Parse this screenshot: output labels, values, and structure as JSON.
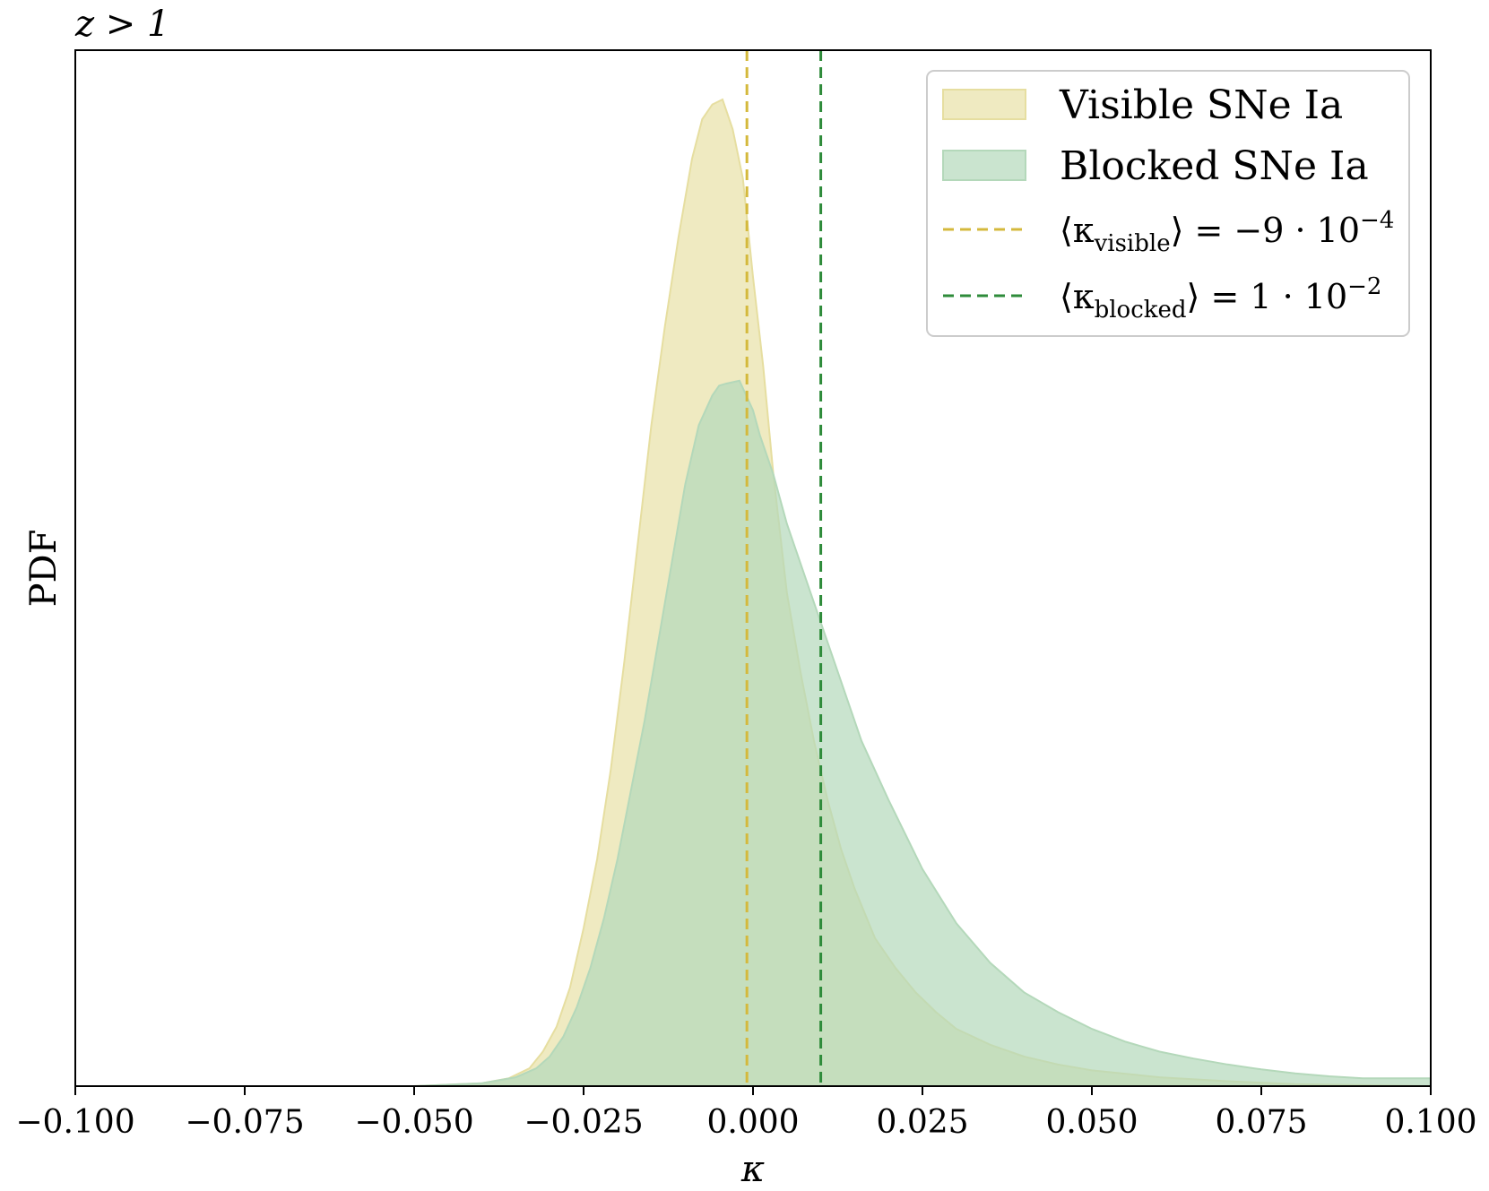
{
  "chart_data": {
    "type": "area",
    "title": "z > 1",
    "xlabel": "κ",
    "ylabel": "PDF",
    "xlim": [
      -0.1,
      0.1
    ],
    "ylim": [
      0,
      1.05
    ],
    "xticks": [
      -0.1,
      -0.075,
      -0.05,
      -0.025,
      0.0,
      0.025,
      0.05,
      0.075,
      0.1
    ],
    "xtick_labels": [
      "−0.100",
      "−0.075",
      "−0.050",
      "−0.025",
      "0.000",
      "0.025",
      "0.050",
      "0.075",
      "0.100"
    ],
    "yticks_shown": false,
    "grid": false,
    "legend_position": "top-right",
    "series": [
      {
        "name": "Visible SNe Ia",
        "color": "#e6dea0",
        "x": [
          -0.1,
          -0.05,
          -0.04,
          -0.036,
          -0.033,
          -0.031,
          -0.029,
          -0.027,
          -0.025,
          -0.023,
          -0.021,
          -0.019,
          -0.017,
          -0.015,
          -0.013,
          -0.011,
          -0.009,
          -0.0075,
          -0.006,
          -0.0045,
          -0.003,
          -0.0015,
          0.0,
          0.0015,
          0.003,
          0.005,
          0.007,
          0.009,
          0.011,
          0.013,
          0.015,
          0.018,
          0.021,
          0.024,
          0.027,
          0.03,
          0.035,
          0.04,
          0.045,
          0.05,
          0.06,
          0.07,
          0.08,
          0.09,
          0.1
        ],
        "y": [
          0,
          0,
          0.003,
          0.008,
          0.018,
          0.035,
          0.06,
          0.1,
          0.16,
          0.23,
          0.32,
          0.43,
          0.55,
          0.67,
          0.77,
          0.86,
          0.94,
          0.98,
          0.995,
          1.0,
          0.97,
          0.92,
          0.82,
          0.73,
          0.62,
          0.5,
          0.42,
          0.35,
          0.29,
          0.24,
          0.2,
          0.15,
          0.12,
          0.095,
          0.075,
          0.058,
          0.042,
          0.03,
          0.022,
          0.016,
          0.009,
          0.005,
          0.002,
          0.001,
          0.0
        ]
      },
      {
        "name": "Blocked SNe Ia",
        "color": "#b4d8ba",
        "x": [
          -0.1,
          -0.05,
          -0.04,
          -0.035,
          -0.032,
          -0.03,
          -0.028,
          -0.026,
          -0.024,
          -0.022,
          -0.02,
          -0.018,
          -0.016,
          -0.014,
          -0.012,
          -0.01,
          -0.008,
          -0.006,
          -0.005,
          -0.004,
          -0.002,
          -0.001,
          0.0,
          0.001,
          0.003,
          0.005,
          0.007,
          0.01,
          0.013,
          0.016,
          0.02,
          0.025,
          0.03,
          0.035,
          0.04,
          0.045,
          0.05,
          0.055,
          0.06,
          0.065,
          0.07,
          0.075,
          0.08,
          0.085,
          0.09,
          0.1
        ],
        "y": [
          0,
          0,
          0.003,
          0.009,
          0.018,
          0.03,
          0.05,
          0.08,
          0.12,
          0.17,
          0.23,
          0.3,
          0.37,
          0.45,
          0.53,
          0.61,
          0.67,
          0.7,
          0.71,
          0.712,
          0.715,
          0.7,
          0.685,
          0.66,
          0.62,
          0.57,
          0.53,
          0.47,
          0.41,
          0.35,
          0.29,
          0.22,
          0.165,
          0.125,
          0.095,
          0.075,
          0.058,
          0.045,
          0.035,
          0.028,
          0.022,
          0.017,
          0.013,
          0.01,
          0.008,
          0.008
        ]
      }
    ],
    "vlines": [
      {
        "label": "⟨κvisible⟩ = −9 · 10−4",
        "label_main": "⟨κ",
        "label_sub": "visible",
        "label_rest": "⟩ = −9 · 10",
        "label_sup": "−4",
        "x": -0.0009,
        "color": "#d4b93c",
        "style": "dashed"
      },
      {
        "label": "⟨κblocked⟩ = 1 · 10−2",
        "label_main": "⟨κ",
        "label_sub": "blocked",
        "label_rest": "⟩ = 1 · 10",
        "label_sup": "−2",
        "x": 0.01,
        "color": "#2e8b3a",
        "style": "dashed"
      }
    ]
  }
}
